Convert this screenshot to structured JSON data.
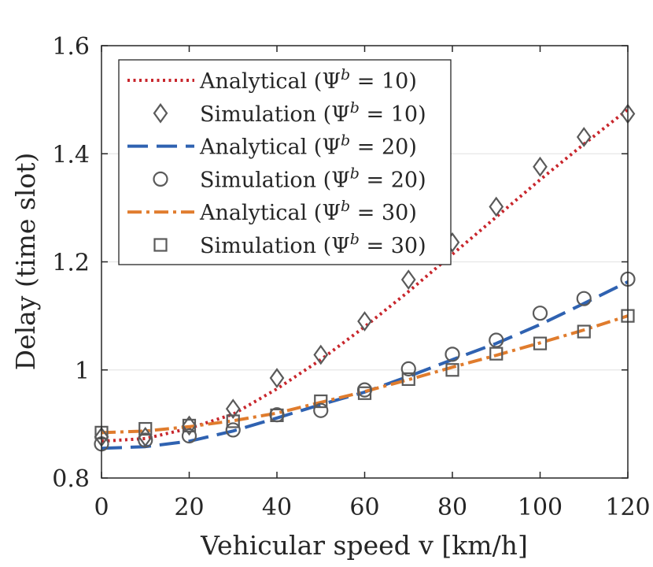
{
  "chart_data": {
    "type": "line",
    "title": "",
    "xlabel": "Vehicular speed v [km/h]",
    "ylabel": "Delay (time slot)",
    "xlim": [
      0,
      120
    ],
    "ylim": [
      0.8,
      1.6
    ],
    "xticks": [
      0,
      20,
      40,
      60,
      80,
      100,
      120
    ],
    "xtick_labels": [
      "0",
      "20",
      "40",
      "60",
      "80",
      "100",
      "120"
    ],
    "yticks": [
      0.8,
      1.0,
      1.2,
      1.4,
      1.6
    ],
    "ytick_labels": [
      "0.8",
      "1",
      "1.2",
      "1.4",
      "1.6"
    ],
    "grid": "horizontal",
    "legend_position": "top-left",
    "series": [
      {
        "name": "Analytical (Ψ^b = 10)",
        "label_prefix": "Analytical (Ψ",
        "label_sup": "b",
        "label_suffix": " = 10)",
        "kind": "line",
        "style": "dotted",
        "color": "#c8262c",
        "x": [
          0,
          10,
          20,
          30,
          40,
          50,
          60,
          70,
          80,
          90,
          100,
          110,
          120
        ],
        "y": [
          0.868,
          0.873,
          0.892,
          0.918,
          0.965,
          1.019,
          1.08,
          1.145,
          1.214,
          1.283,
          1.352,
          1.418,
          1.482
        ]
      },
      {
        "name": "Simulation (Ψ^b = 10)",
        "label_prefix": "Simulation (Ψ",
        "label_sup": "b",
        "label_suffix": " = 10)",
        "kind": "marker",
        "marker": "diamond",
        "color": "#5a5a5a",
        "x": [
          0,
          10,
          20,
          30,
          40,
          50,
          60,
          70,
          80,
          90,
          100,
          110,
          120
        ],
        "y": [
          0.876,
          0.876,
          0.897,
          0.928,
          0.985,
          1.028,
          1.09,
          1.167,
          1.236,
          1.302,
          1.376,
          1.431,
          1.474
        ]
      },
      {
        "name": "Analytical (Ψ^b = 20)",
        "label_prefix": "Analytical (Ψ",
        "label_sup": "b",
        "label_suffix": " = 20)",
        "kind": "line",
        "style": "dashed",
        "color": "#2f62b1",
        "x": [
          0,
          10,
          20,
          30,
          40,
          50,
          60,
          70,
          80,
          90,
          100,
          110,
          120
        ],
        "y": [
          0.855,
          0.858,
          0.868,
          0.887,
          0.911,
          0.936,
          0.959,
          0.988,
          1.019,
          1.049,
          1.084,
          1.123,
          1.163
        ]
      },
      {
        "name": "Simulation (Ψ^b = 20)",
        "label_prefix": "Simulation (Ψ",
        "label_sup": "b",
        "label_suffix": " = 20)",
        "kind": "marker",
        "marker": "circle",
        "color": "#5a5a5a",
        "x": [
          0,
          10,
          20,
          30,
          40,
          50,
          60,
          70,
          80,
          90,
          100,
          110,
          120
        ],
        "y": [
          0.863,
          0.87,
          0.878,
          0.889,
          0.917,
          0.925,
          0.963,
          1.002,
          1.029,
          1.055,
          1.105,
          1.132,
          1.168
        ]
      },
      {
        "name": "Analytical (Ψ^b = 30)",
        "label_prefix": "Analytical (Ψ",
        "label_sup": "b",
        "label_suffix": " = 30)",
        "kind": "line",
        "style": "dashdot",
        "color": "#e07c2d",
        "x": [
          0,
          10,
          20,
          30,
          40,
          50,
          60,
          70,
          80,
          90,
          100,
          110,
          120
        ],
        "y": [
          0.884,
          0.887,
          0.895,
          0.906,
          0.92,
          0.94,
          0.96,
          0.982,
          1.005,
          1.027,
          1.05,
          1.074,
          1.1
        ]
      },
      {
        "name": "Simulation (Ψ^b = 30)",
        "label_prefix": "Simulation (Ψ",
        "label_sup": "b",
        "label_suffix": " = 30)",
        "kind": "marker",
        "marker": "square",
        "color": "#5a5a5a",
        "x": [
          0,
          10,
          20,
          30,
          40,
          50,
          60,
          70,
          80,
          90,
          100,
          110,
          120
        ],
        "y": [
          0.884,
          0.891,
          0.897,
          0.905,
          0.916,
          0.942,
          0.957,
          0.983,
          1.0,
          1.03,
          1.049,
          1.071,
          1.1
        ]
      }
    ]
  }
}
